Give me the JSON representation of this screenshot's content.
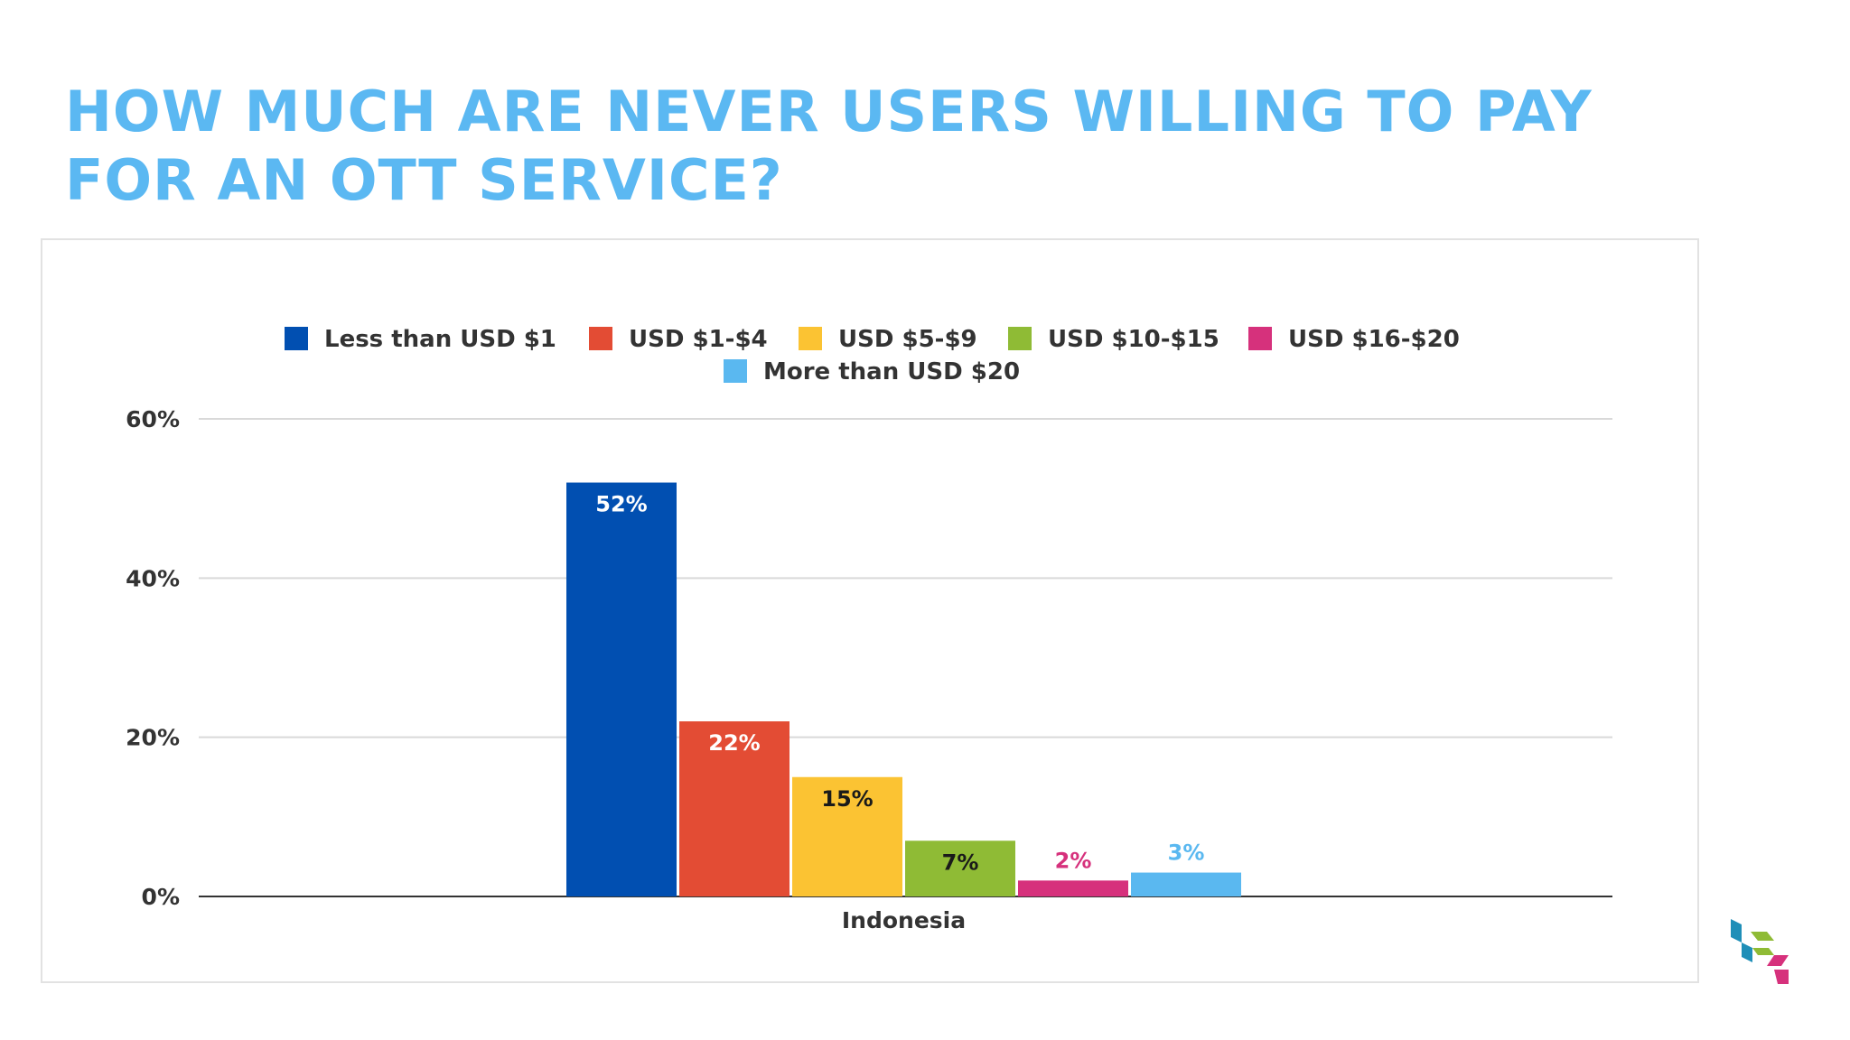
{
  "slide": {
    "title_line1": "HOW MUCH ARE NEVER USERS WILLING TO PAY",
    "title_line2": "FOR AN OTT SERVICE?",
    "logo_icon": "brand-logo-icon"
  },
  "chart_data": {
    "type": "bar",
    "categories": [
      "Indonesia"
    ],
    "series": [
      {
        "name": "Less than USD $1",
        "values": [
          52
        ],
        "color": "#014fb1",
        "label_color": "#ffffff"
      },
      {
        "name": "USD $1-$4",
        "values": [
          22
        ],
        "color": "#e34c34",
        "label_color": "#ffffff"
      },
      {
        "name": "USD $5-$9",
        "values": [
          15
        ],
        "color": "#fbc333",
        "label_color": "#1a1a1a"
      },
      {
        "name": "USD $10-$15",
        "values": [
          7
        ],
        "color": "#8fbb35",
        "label_color": "#1a1a1a"
      },
      {
        "name": "USD $16-$20",
        "values": [
          2
        ],
        "color": "#d6317c",
        "label_color": "#d6317c"
      },
      {
        "name": "More than USD $20",
        "values": [
          3
        ],
        "color": "#5ab8f0",
        "label_color": "#5ab8f0"
      }
    ],
    "data_labels": [
      "52%",
      "22%",
      "15%",
      "7%",
      "2%",
      "3%"
    ],
    "yaxis": {
      "ticks": [
        "0%",
        "20%",
        "40%",
        "60%"
      ],
      "tick_values": [
        0,
        20,
        40,
        60
      ]
    },
    "ylim": [
      0,
      60
    ],
    "title": "",
    "xlabel": "",
    "ylabel": "",
    "grid": true,
    "legend_position": "top"
  }
}
